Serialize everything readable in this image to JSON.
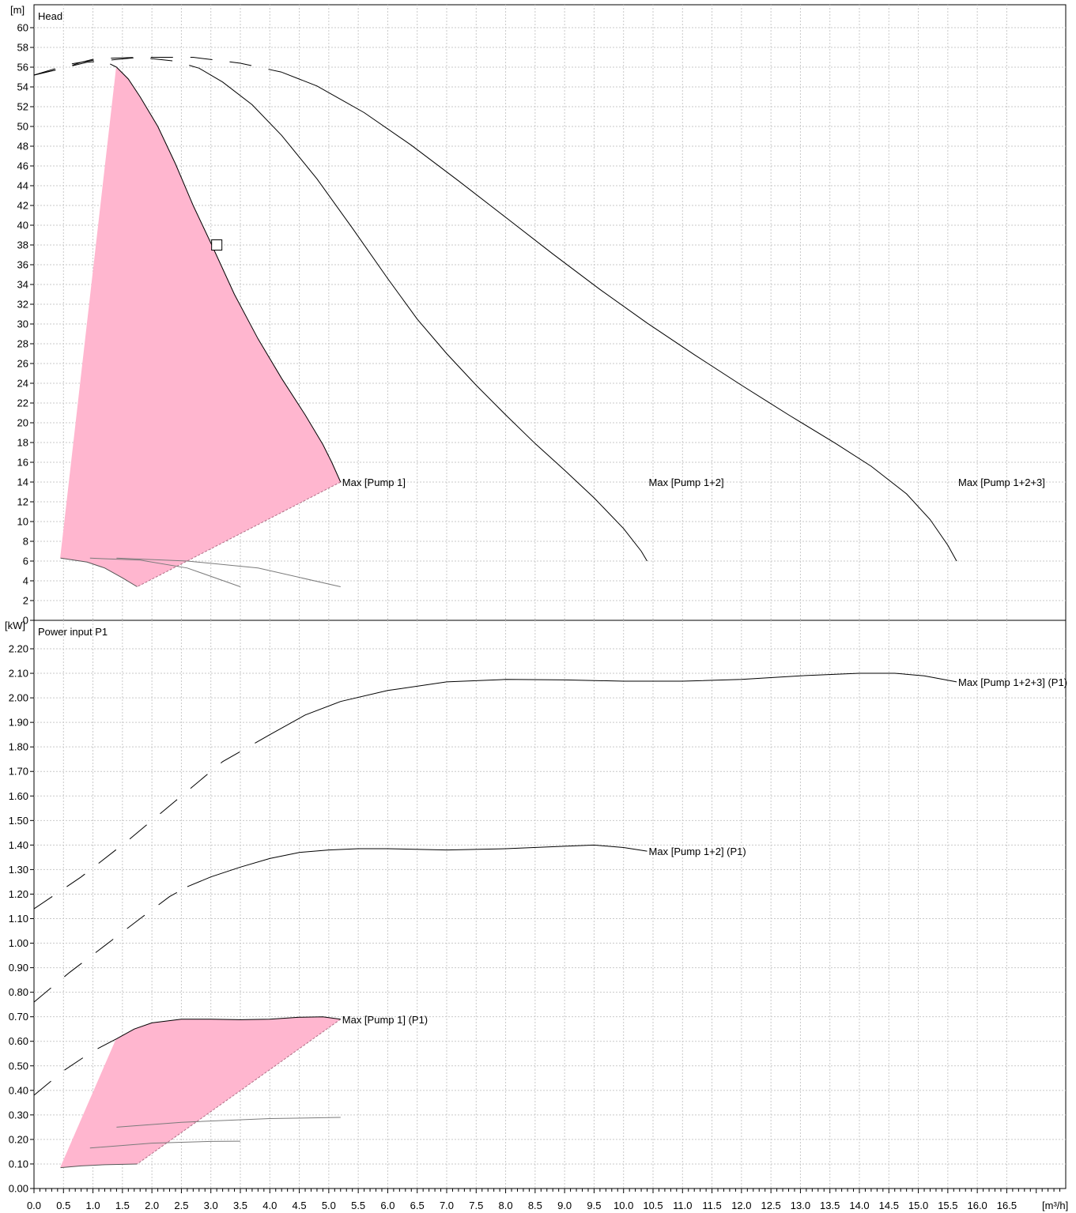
{
  "colors": {
    "range_fill": "#ffb6cf",
    "range_edge": "#b06f86",
    "curve": "#000000",
    "minor_curve": "#7a7a7a",
    "grid": "#c9c9c9"
  },
  "chart_data": [
    {
      "type": "line",
      "title": "Head",
      "ylabel": "[m]",
      "xlabel": "[m³/h]",
      "xlim": [
        0,
        17.5
      ],
      "ylim": [
        0,
        62
      ],
      "x_ticks": [
        0.0,
        0.5,
        1.0,
        1.5,
        2.0,
        2.5,
        3.0,
        3.5,
        4.0,
        4.5,
        5.0,
        5.5,
        6.0,
        6.5,
        7.0,
        7.5,
        8.0,
        8.5,
        9.0,
        9.5,
        10.0,
        10.5,
        11.0,
        11.5,
        12.0,
        12.5,
        13.0,
        13.5,
        14.0,
        14.5,
        15.0,
        15.5,
        16.0,
        16.5
      ],
      "y_ticks": [
        0,
        2,
        4,
        6,
        8,
        10,
        12,
        14,
        16,
        18,
        20,
        22,
        24,
        26,
        28,
        30,
        32,
        34,
        36,
        38,
        40,
        42,
        44,
        46,
        48,
        50,
        52,
        54,
        56,
        58,
        60
      ],
      "grid": true,
      "series": [
        {
          "name": "Max [Pump 1]",
          "style": "solid",
          "dashed_start": [
            [
              0.0,
              55.2
            ],
            [
              0.5,
              55.9
            ],
            [
              0.8,
              56.5
            ],
            [
              1.0,
              56.8
            ],
            [
              1.2,
              56.6
            ],
            [
              1.4,
              56.0
            ]
          ],
          "points": [
            [
              1.4,
              56.0
            ],
            [
              1.6,
              54.8
            ],
            [
              1.8,
              53.0
            ],
            [
              2.1,
              50.0
            ],
            [
              2.4,
              46.2
            ],
            [
              2.7,
              42.0
            ],
            [
              3.0,
              38.2
            ],
            [
              3.4,
              33.0
            ],
            [
              3.8,
              28.5
            ],
            [
              4.2,
              24.5
            ],
            [
              4.6,
              20.8
            ],
            [
              4.9,
              17.8
            ],
            [
              5.05,
              16.0
            ],
            [
              5.2,
              14.0
            ]
          ]
        },
        {
          "name": "Max [Pump 1+2]",
          "style": "solid",
          "dashed_start": [
            [
              0.0,
              55.2
            ],
            [
              0.6,
              56.3
            ],
            [
              1.2,
              56.9
            ],
            [
              1.8,
              57.0
            ],
            [
              2.4,
              56.6
            ],
            [
              2.8,
              55.9
            ]
          ],
          "points": [
            [
              2.8,
              55.9
            ],
            [
              3.2,
              54.5
            ],
            [
              3.7,
              52.2
            ],
            [
              4.2,
              49.1
            ],
            [
              4.8,
              44.7
            ],
            [
              5.4,
              39.7
            ],
            [
              6.0,
              34.6
            ],
            [
              6.5,
              30.5
            ],
            [
              7.0,
              27.0
            ],
            [
              7.5,
              23.8
            ],
            [
              8.0,
              20.8
            ],
            [
              8.5,
              17.9
            ],
            [
              9.0,
              15.2
            ],
            [
              9.5,
              12.4
            ],
            [
              10.0,
              9.3
            ],
            [
              10.3,
              7.0
            ],
            [
              10.4,
              6.0
            ]
          ]
        },
        {
          "name": "Max [Pump 1+2+3]",
          "style": "solid",
          "dashed_start": [
            [
              0.0,
              55.2
            ],
            [
              0.9,
              56.5
            ],
            [
              1.8,
              57.0
            ],
            [
              2.7,
              57.0
            ],
            [
              3.5,
              56.4
            ],
            [
              4.2,
              55.5
            ]
          ],
          "points": [
            [
              4.2,
              55.5
            ],
            [
              4.8,
              54.1
            ],
            [
              5.6,
              51.4
            ],
            [
              6.4,
              48.1
            ],
            [
              7.2,
              44.5
            ],
            [
              8.0,
              40.8
            ],
            [
              8.8,
              37.1
            ],
            [
              9.6,
              33.5
            ],
            [
              10.4,
              30.1
            ],
            [
              11.2,
              26.9
            ],
            [
              12.0,
              23.8
            ],
            [
              12.8,
              20.8
            ],
            [
              13.6,
              17.9
            ],
            [
              14.2,
              15.6
            ],
            [
              14.8,
              12.8
            ],
            [
              15.2,
              10.2
            ],
            [
              15.5,
              7.6
            ],
            [
              15.65,
              6.0
            ]
          ]
        }
      ],
      "annotations": [
        "Max [Pump 1]",
        "Max [Pump 1+2]",
        "Max [Pump 1+2+3]"
      ],
      "range_region": [
        [
          0.45,
          6.3
        ],
        [
          1.4,
          56.0
        ],
        [
          1.6,
          54.8
        ],
        [
          1.8,
          53.0
        ],
        [
          2.1,
          50.0
        ],
        [
          2.4,
          46.2
        ],
        [
          2.7,
          42.0
        ],
        [
          3.0,
          38.2
        ],
        [
          3.4,
          33.0
        ],
        [
          3.8,
          28.5
        ],
        [
          4.2,
          24.5
        ],
        [
          4.6,
          20.8
        ],
        [
          4.9,
          17.8
        ],
        [
          5.05,
          16.0
        ],
        [
          5.2,
          14.0
        ],
        [
          1.75,
          3.4
        ],
        [
          1.5,
          4.3
        ],
        [
          1.2,
          5.3
        ],
        [
          0.9,
          5.9
        ],
        [
          0.45,
          6.3
        ]
      ],
      "operating_point": {
        "x": 3.1,
        "y": 38
      }
    },
    {
      "type": "line",
      "title": "Power input P1",
      "ylabel": "[kW]",
      "xlabel": "[m³/h]",
      "xlim": [
        0,
        17.5
      ],
      "ylim": [
        0,
        2.3
      ],
      "x_ticks": [
        0.0,
        0.5,
        1.0,
        1.5,
        2.0,
        2.5,
        3.0,
        3.5,
        4.0,
        4.5,
        5.0,
        5.5,
        6.0,
        6.5,
        7.0,
        7.5,
        8.0,
        8.5,
        9.0,
        9.5,
        10.0,
        10.5,
        11.0,
        11.5,
        12.0,
        12.5,
        13.0,
        13.5,
        14.0,
        14.5,
        15.0,
        15.5,
        16.0,
        16.5
      ],
      "y_ticks": [
        "0.00",
        "0.10",
        "0.20",
        "0.30",
        "0.40",
        "0.50",
        "0.60",
        "0.70",
        "0.80",
        "0.90",
        "1.00",
        "1.10",
        "1.20",
        "1.30",
        "1.40",
        "1.50",
        "1.60",
        "1.70",
        "1.80",
        "1.90",
        "2.00",
        "2.10",
        "2.20"
      ],
      "grid": true,
      "series": [
        {
          "name": "Max [Pump 1] (P1)",
          "style": "solid",
          "dashed_start": [
            [
              0.0,
              0.38
            ],
            [
              0.5,
              0.48
            ],
            [
              1.0,
              0.56
            ],
            [
              1.4,
              0.61
            ]
          ],
          "points": [
            [
              1.4,
              0.61
            ],
            [
              1.7,
              0.65
            ],
            [
              2.0,
              0.675
            ],
            [
              2.5,
              0.69
            ],
            [
              3.0,
              0.69
            ],
            [
              3.5,
              0.688
            ],
            [
              4.0,
              0.69
            ],
            [
              4.5,
              0.698
            ],
            [
              4.9,
              0.7
            ],
            [
              5.2,
              0.69
            ]
          ]
        },
        {
          "name": "Max [Pump 1+2] (P1)",
          "style": "solid",
          "dashed_start": [
            [
              0.0,
              0.76
            ],
            [
              0.6,
              0.88
            ],
            [
              1.2,
              0.99
            ],
            [
              1.8,
              1.1
            ],
            [
              2.3,
              1.19
            ],
            [
              2.6,
              1.23
            ]
          ],
          "points": [
            [
              2.6,
              1.23
            ],
            [
              3.0,
              1.27
            ],
            [
              3.5,
              1.31
            ],
            [
              4.0,
              1.345
            ],
            [
              4.5,
              1.37
            ],
            [
              5.0,
              1.38
            ],
            [
              5.5,
              1.385
            ],
            [
              6.0,
              1.385
            ],
            [
              7.0,
              1.38
            ],
            [
              8.0,
              1.385
            ],
            [
              9.0,
              1.395
            ],
            [
              9.5,
              1.4
            ],
            [
              10.0,
              1.39
            ],
            [
              10.4,
              1.375
            ]
          ]
        },
        {
          "name": "Max [Pump 1+2+3] (P1)",
          "style": "solid",
          "dashed_start": [
            [
              0.0,
              1.14
            ],
            [
              0.8,
              1.27
            ],
            [
              1.6,
              1.42
            ],
            [
              2.4,
              1.58
            ],
            [
              3.2,
              1.74
            ],
            [
              4.0,
              1.85
            ]
          ],
          "points": [
            [
              4.0,
              1.85
            ],
            [
              4.6,
              1.93
            ],
            [
              5.2,
              1.985
            ],
            [
              6.0,
              2.03
            ],
            [
              7.0,
              2.065
            ],
            [
              8.0,
              2.075
            ],
            [
              9.0,
              2.073
            ],
            [
              10.0,
              2.068
            ],
            [
              11.0,
              2.068
            ],
            [
              12.0,
              2.075
            ],
            [
              13.0,
              2.09
            ],
            [
              14.0,
              2.1
            ],
            [
              14.6,
              2.1
            ],
            [
              15.1,
              2.09
            ],
            [
              15.65,
              2.065
            ]
          ]
        }
      ],
      "annotations": [
        "Max [Pump 1] (P1)",
        "Max [Pump 1+2] (P1)",
        "Max [Pump 1+2+3] (P1)"
      ],
      "range_region": [
        [
          0.45,
          0.085
        ],
        [
          1.4,
          0.61
        ],
        [
          1.7,
          0.65
        ],
        [
          2.0,
          0.675
        ],
        [
          2.5,
          0.69
        ],
        [
          3.0,
          0.69
        ],
        [
          3.5,
          0.688
        ],
        [
          4.0,
          0.69
        ],
        [
          4.5,
          0.698
        ],
        [
          4.9,
          0.7
        ],
        [
          5.2,
          0.69
        ],
        [
          1.75,
          0.1
        ],
        [
          1.2,
          0.097
        ],
        [
          0.8,
          0.092
        ],
        [
          0.45,
          0.085
        ]
      ]
    }
  ]
}
